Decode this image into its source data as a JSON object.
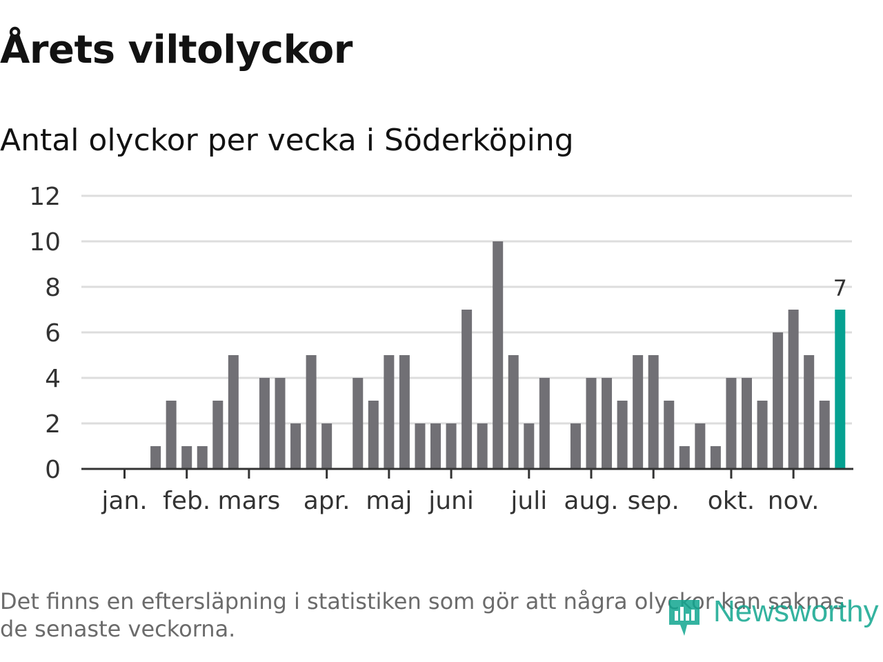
{
  "title": "Årets viltolyckor",
  "subtitle": "Antal olyckor per vecka i Söderköping",
  "footnote": "Det finns en eftersläpning i statistiken som gör att några olyckor kan saknas de senaste veckorna.",
  "brand": {
    "name": "Newsworthy",
    "icon": "newsworthy-logo-icon"
  },
  "colors": {
    "bar": "#717075",
    "highlight": "#06a191",
    "grid": "#dddddd",
    "axis": "#333333",
    "text": "#333333"
  },
  "chart_data": {
    "type": "bar",
    "title": "Antal olyckor per vecka i Söderköping",
    "xlabel": "",
    "ylabel": "",
    "ylim": [
      0,
      12
    ],
    "yticks": [
      "0",
      "2",
      "4",
      "6",
      "8",
      "10",
      "12"
    ],
    "grid": true,
    "weeks": [
      1,
      2,
      3,
      4,
      5,
      6,
      7,
      8,
      9,
      10,
      11,
      12,
      13,
      14,
      15,
      16,
      17,
      18,
      19,
      20,
      21,
      22,
      23,
      24,
      25,
      26,
      27,
      28,
      29,
      30,
      31,
      32,
      33,
      34,
      35,
      36,
      37,
      38,
      39,
      40,
      41,
      42,
      43,
      44,
      45,
      46,
      47
    ],
    "values": [
      0,
      0,
      1,
      3,
      1,
      1,
      3,
      5,
      0,
      4,
      4,
      2,
      5,
      2,
      0,
      4,
      3,
      5,
      5,
      2,
      2,
      2,
      7,
      2,
      10,
      5,
      2,
      4,
      0,
      2,
      4,
      4,
      3,
      5,
      5,
      3,
      1,
      2,
      1,
      4,
      4,
      3,
      6,
      7,
      5,
      3,
      7
    ],
    "highlight_index": 46,
    "highlight_label": "7",
    "month_labels": [
      {
        "label": "jan.",
        "week": 1.0
      },
      {
        "label": "feb.",
        "week": 5.0
      },
      {
        "label": "mars",
        "week": 9.0
      },
      {
        "label": "apr.",
        "week": 14.0
      },
      {
        "label": "maj",
        "week": 18.0
      },
      {
        "label": "juni",
        "week": 22.0
      },
      {
        "label": "juli",
        "week": 27.0
      },
      {
        "label": "aug.",
        "week": 31.0
      },
      {
        "label": "sep.",
        "week": 35.0
      },
      {
        "label": "okt.",
        "week": 40.0
      },
      {
        "label": "nov.",
        "week": 44.0
      }
    ]
  }
}
